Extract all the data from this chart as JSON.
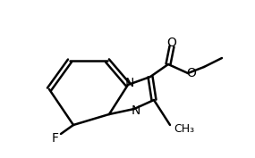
{
  "title": "",
  "background_color": "#ffffff",
  "line_color": "#000000",
  "text_color": "#000000",
  "bond_width": 1.5,
  "font_size": 10,
  "atoms": {
    "F_label": "F",
    "N_label1": "N",
    "N_label2": "N",
    "O_label1": "O",
    "O_label2": "O",
    "CH3_label": "CH₃"
  }
}
